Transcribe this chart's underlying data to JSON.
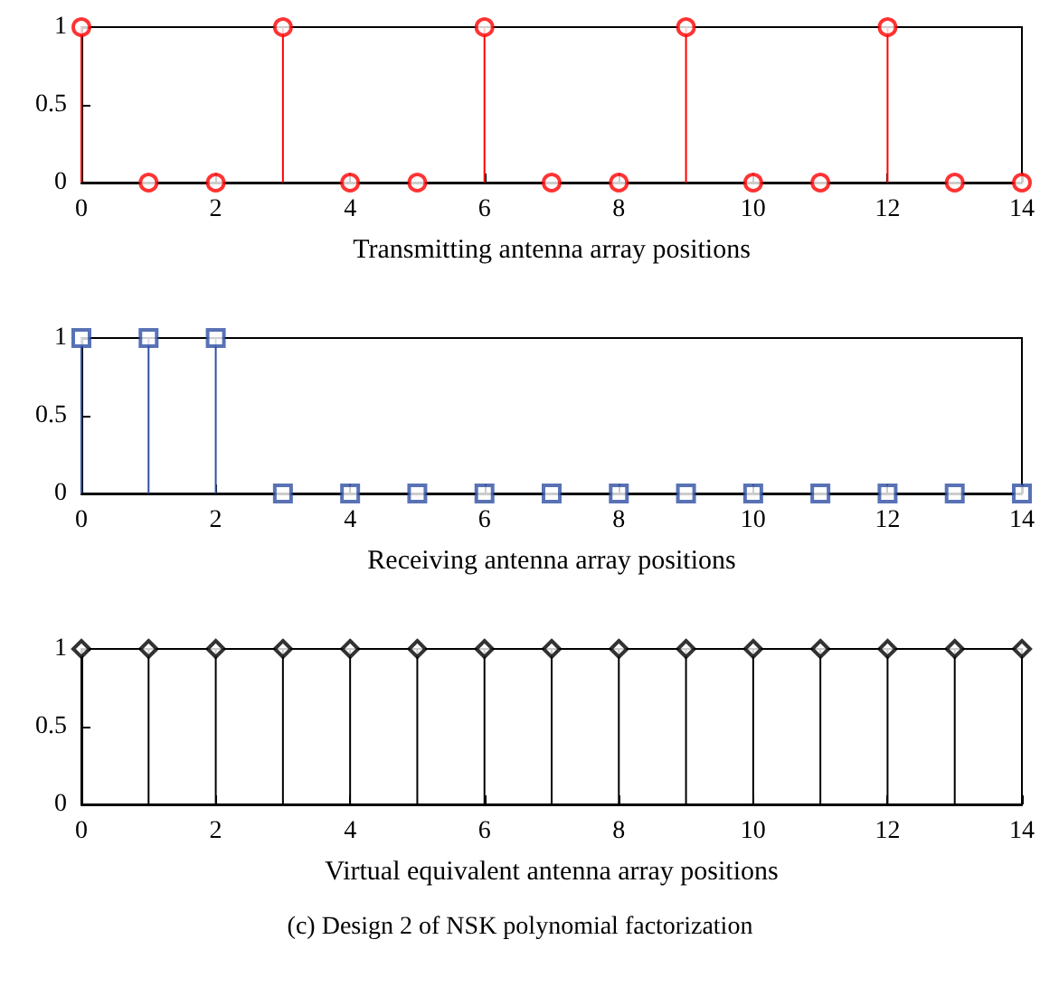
{
  "chart_data": [
    {
      "type": "lollipop",
      "xlabel": "Transmitting antenna array positions",
      "x": [
        0,
        1,
        2,
        3,
        4,
        5,
        6,
        7,
        8,
        9,
        10,
        11,
        12,
        13,
        14
      ],
      "marker": "circle",
      "series": [
        {
          "color": "#ff0000",
          "values": [
            1,
            0,
            0,
            1,
            0,
            0,
            1,
            0,
            0,
            1,
            0,
            0,
            1,
            0,
            0
          ]
        }
      ],
      "xlim": [
        0,
        14
      ],
      "xticks": [
        0,
        2,
        4,
        6,
        8,
        10,
        12,
        14
      ],
      "ylim": [
        0,
        1
      ],
      "yticks": [
        0,
        0.5,
        1
      ]
    },
    {
      "type": "lollipop",
      "xlabel": "Receiving antenna array positions",
      "x": [
        0,
        1,
        2,
        3,
        4,
        5,
        6,
        7,
        8,
        9,
        10,
        11,
        12,
        13,
        14
      ],
      "marker": "square",
      "series": [
        {
          "color": "#2e4fa3",
          "values": [
            1,
            1,
            1,
            0,
            0,
            0,
            0,
            0,
            0,
            0,
            0,
            0,
            0,
            0,
            0
          ]
        }
      ],
      "xlim": [
        0,
        14
      ],
      "xticks": [
        0,
        2,
        4,
        6,
        8,
        10,
        12,
        14
      ],
      "ylim": [
        0,
        1
      ],
      "yticks": [
        0,
        0.5,
        1
      ]
    },
    {
      "type": "lollipop",
      "xlabel": "Virtual equivalent antenna array positions",
      "x": [
        0,
        1,
        2,
        3,
        4,
        5,
        6,
        7,
        8,
        9,
        10,
        11,
        12,
        13,
        14
      ],
      "marker": "diamond",
      "series": [
        {
          "color": "#000000",
          "values": [
            1,
            1,
            1,
            1,
            1,
            1,
            1,
            1,
            1,
            1,
            1,
            1,
            1,
            1,
            1
          ]
        }
      ],
      "xlim": [
        0,
        14
      ],
      "xticks": [
        0,
        2,
        4,
        6,
        8,
        10,
        12,
        14
      ],
      "ylim": [
        0,
        1
      ],
      "yticks": [
        0,
        0.5,
        1
      ],
      "annotations": [
        "(c) Design 2 of NSK polynomial factorization"
      ]
    }
  ]
}
